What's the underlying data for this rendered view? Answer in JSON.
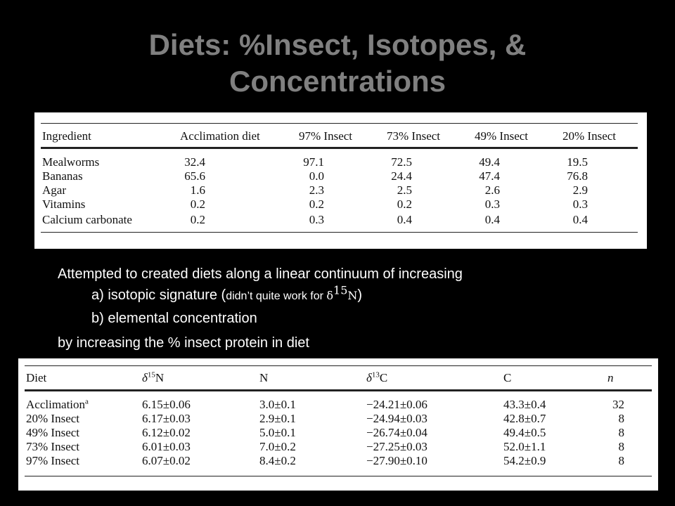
{
  "slide": {
    "title_line1": "Diets: %Insect, Isotopes, &",
    "title_line2": "Concentrations"
  },
  "ingredients_table": {
    "headers": [
      "Ingredient",
      "Acclimation diet",
      "97% Insect",
      "73% Insect",
      "49% Insect",
      "20% Insect"
    ],
    "rows": [
      [
        "Mealworms",
        "32.4",
        "97.1",
        "72.5",
        "49.4",
        "19.5"
      ],
      [
        "Bananas",
        "65.6",
        "0.0",
        "24.4",
        "47.4",
        "76.8"
      ],
      [
        "Agar",
        "1.6",
        "2.3",
        "2.5",
        "2.6",
        "2.9"
      ],
      [
        "Vitamins",
        "0.2",
        "0.2",
        "0.2",
        "0.3",
        "0.3"
      ],
      [
        "Calcium carbonate",
        "0.2",
        "0.3",
        "0.4",
        "0.4",
        "0.4"
      ]
    ]
  },
  "notes": {
    "line1": "Attempted to created diets along a linear continuum of increasing",
    "line2_prefix": "a) isotopic signature (",
    "line2_small": "didn’t quite work for ",
    "line2_delta": "δ",
    "line2_sup": "15",
    "line2_element": "N",
    "line2_suffix": ")",
    "line3": "b) elemental concentration",
    "line4": "by increasing the % insect protein in diet"
  },
  "isotope_table": {
    "headers": {
      "diet": "Diet",
      "d15n_delta": "δ",
      "d15n_sup": "15",
      "d15n_el": "N",
      "n": "N",
      "d13c_delta": "δ",
      "d13c_sup": "13",
      "d13c_el": "C",
      "c": "C",
      "count": "n"
    },
    "rows": [
      {
        "diet": "Acclimation",
        "sup": "a",
        "d15n": "6.15±0.06",
        "n": "3.0±0.1",
        "d13c": "−24.21±0.06",
        "c": "43.3±0.4",
        "count": "32"
      },
      {
        "diet": "20% Insect",
        "sup": "",
        "d15n": "6.17±0.03",
        "n": "2.9±0.1",
        "d13c": "−24.94±0.03",
        "c": "42.8±0.7",
        "count": "8"
      },
      {
        "diet": "49% Insect",
        "sup": "",
        "d15n": "6.12±0.02",
        "n": "5.0±0.1",
        "d13c": "−26.74±0.04",
        "c": "49.4±0.5",
        "count": "8"
      },
      {
        "diet": "73% Insect",
        "sup": "",
        "d15n": "6.01±0.03",
        "n": "7.0±0.2",
        "d13c": "−27.25±0.03",
        "c": "52.0±1.1",
        "count": "8"
      },
      {
        "diet": "97% Insect",
        "sup": "",
        "d15n": "6.07±0.02",
        "n": "8.4±0.2",
        "d13c": "−27.90±0.10",
        "c": "54.2±0.9",
        "count": "8"
      }
    ]
  }
}
